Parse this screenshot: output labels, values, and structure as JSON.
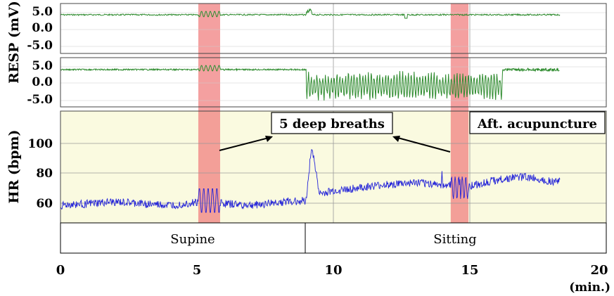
{
  "chart_data": [
    {
      "type": "line",
      "panel": "resp1",
      "ylabel": "RESP (mV)",
      "yticks": [
        "5.0",
        "0.0",
        "-5.0"
      ],
      "ylim": [
        -7.5,
        7.5
      ],
      "xlim": [
        0,
        20
      ],
      "series": [
        {
          "color": "#2e8b2e",
          "baseline": 4.0
        }
      ]
    },
    {
      "type": "line",
      "panel": "resp2",
      "ylabel": "RESP (mV)",
      "yticks": [
        "5.0",
        "0.0",
        "-5.0"
      ],
      "ylim": [
        -7.5,
        7.5
      ],
      "xlim": [
        0,
        20
      ],
      "series": [
        {
          "color": "#2e8b2e",
          "baseline": 4.0
        }
      ]
    },
    {
      "type": "line",
      "panel": "hr",
      "ylabel": "HR (bpm)",
      "yticks": [
        "100",
        "80",
        "60"
      ],
      "ylim": [
        50,
        120
      ],
      "xlim": [
        0,
        20
      ],
      "series": [
        {
          "color": "#2323d8"
        }
      ],
      "approx_values": {
        "x": [
          0,
          1,
          2,
          3,
          4,
          5,
          5.5,
          6,
          7,
          8,
          9,
          9.2,
          9.5,
          10,
          11,
          12,
          13,
          14,
          15,
          16,
          17,
          18
        ],
        "y": [
          61,
          62,
          63,
          62,
          61,
          63,
          65,
          62,
          61,
          63,
          64,
          98,
          68,
          70,
          72,
          74,
          75,
          74,
          73,
          77,
          79,
          76
        ]
      },
      "xticks": [
        "0",
        "5",
        "10",
        "15",
        "20"
      ],
      "xunit": "(min.)"
    }
  ],
  "highlights": [
    {
      "x_start": 5.05,
      "x_end": 5.85
    },
    {
      "x_start": 14.3,
      "x_end": 14.95
    }
  ],
  "annotations": {
    "deep_breaths": "5 deep breaths",
    "after_acupuncture": "Aft. acupuncture"
  },
  "phases": [
    {
      "label": "Supine",
      "x_start": 0,
      "x_end": 9
    },
    {
      "label": "Sitting",
      "x_start": 9,
      "x_end": 20
    }
  ],
  "colors": {
    "resp_line": "#2e8b2e",
    "hr_line": "#2323d8",
    "highlight": "#f08080",
    "hr_background": "#fafae0",
    "grid": "#999999"
  }
}
